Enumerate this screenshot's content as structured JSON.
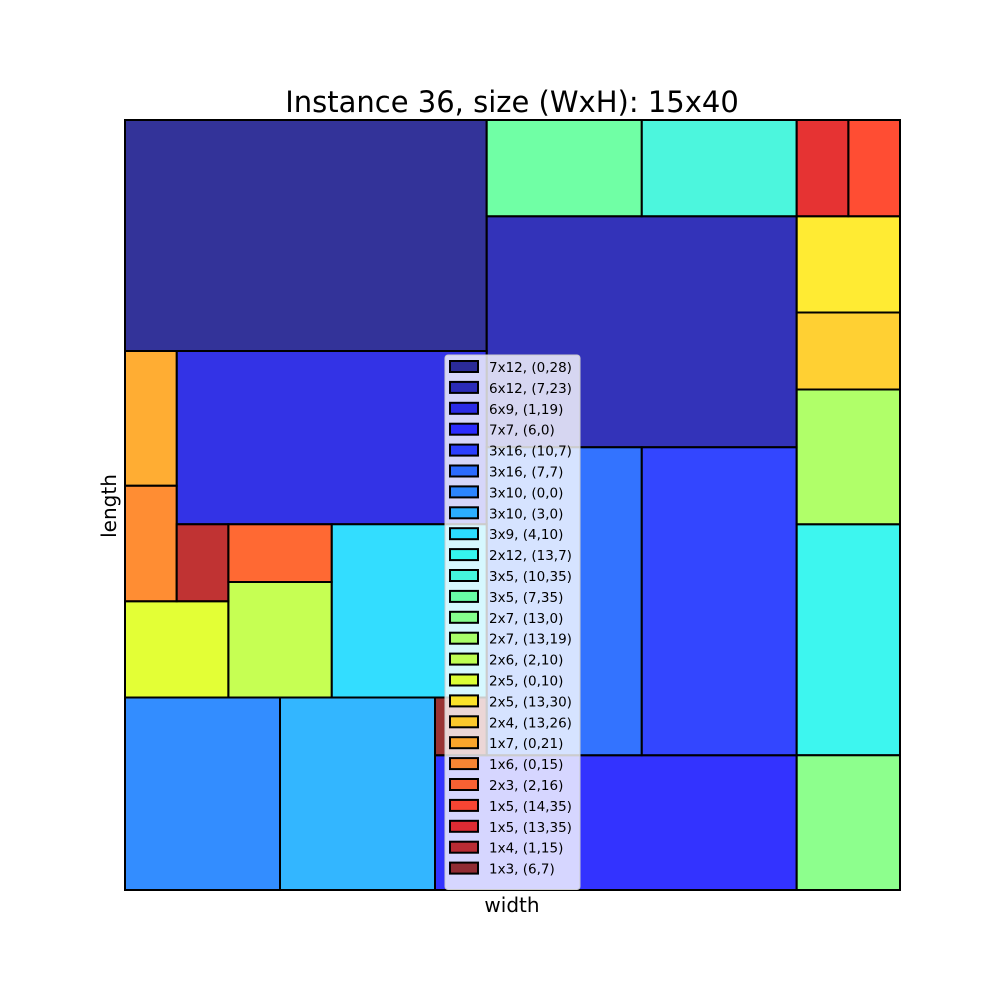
{
  "chart_data": {
    "type": "rectangle-packing",
    "title": "Instance 36, size (WxH): 15x40",
    "xlabel": "width",
    "ylabel": "length",
    "xlim": [
      0,
      15
    ],
    "ylim": [
      0,
      40
    ],
    "grid": false,
    "legend_position": "center",
    "rectangles": [
      {
        "label": "7x12, (0,28)",
        "x": 0,
        "y": 28,
        "w": 7,
        "h": 12,
        "color": "#000080"
      },
      {
        "label": "6x12, (7,23)",
        "x": 7,
        "y": 23,
        "w": 6,
        "h": 12,
        "color": "#0000a8"
      },
      {
        "label": "6x9, (1,19)",
        "x": 1,
        "y": 19,
        "w": 6,
        "h": 9,
        "color": "#0000e0"
      },
      {
        "label": "7x7, (6,0)",
        "x": 6,
        "y": 0,
        "w": 7,
        "h": 7,
        "color": "#0000ff"
      },
      {
        "label": "3x16, (10,7)",
        "x": 10,
        "y": 7,
        "w": 3,
        "h": 16,
        "color": "#0018ff"
      },
      {
        "label": "3x16, (7,7)",
        "x": 7,
        "y": 7,
        "w": 3,
        "h": 16,
        "color": "#0050ff"
      },
      {
        "label": "3x10, (0,0)",
        "x": 0,
        "y": 0,
        "w": 3,
        "h": 10,
        "color": "#0070ff"
      },
      {
        "label": "3x10, (3,0)",
        "x": 3,
        "y": 0,
        "w": 3,
        "h": 10,
        "color": "#00a4ff"
      },
      {
        "label": "3x9, (4,10)",
        "x": 4,
        "y": 10,
        "w": 3,
        "h": 9,
        "color": "#00d4ff"
      },
      {
        "label": "2x12, (13,7)",
        "x": 13,
        "y": 7,
        "w": 2,
        "h": 12,
        "color": "#0cf4eb"
      },
      {
        "label": "3x5, (10,35)",
        "x": 10,
        "y": 35,
        "w": 3,
        "h": 5,
        "color": "#1ff4d4"
      },
      {
        "label": "3x5, (7,35)",
        "x": 7,
        "y": 35,
        "w": 3,
        "h": 5,
        "color": "#4cff8e"
      },
      {
        "label": "2x7, (13,0)",
        "x": 13,
        "y": 0,
        "w": 2,
        "h": 7,
        "color": "#70ff70"
      },
      {
        "label": "2x7, (13,19)",
        "x": 13,
        "y": 19,
        "w": 2,
        "h": 7,
        "color": "#9cff44"
      },
      {
        "label": "2x6, (2,10)",
        "x": 2,
        "y": 10,
        "w": 2,
        "h": 6,
        "color": "#b8ff28"
      },
      {
        "label": "2x5, (0,10)",
        "x": 0,
        "y": 10,
        "w": 2,
        "h": 5,
        "color": "#dcff04"
      },
      {
        "label": "2x5, (13,30)",
        "x": 13,
        "y": 30,
        "w": 2,
        "h": 5,
        "color": "#ffe600"
      },
      {
        "label": "2x4, (13,26)",
        "x": 13,
        "y": 26,
        "w": 2,
        "h": 4,
        "color": "#ffc400"
      },
      {
        "label": "1x7, (0,21)",
        "x": 0,
        "y": 21,
        "w": 1,
        "h": 7,
        "color": "#ff9800"
      },
      {
        "label": "1x6, (0,15)",
        "x": 0,
        "y": 15,
        "w": 1,
        "h": 6,
        "color": "#ff7000"
      },
      {
        "label": "2x3, (2,16)",
        "x": 2,
        "y": 16,
        "w": 2,
        "h": 3,
        "color": "#ff4400"
      },
      {
        "label": "1x5, (14,35)",
        "x": 14,
        "y": 35,
        "w": 1,
        "h": 5,
        "color": "#ff2000"
      },
      {
        "label": "1x5, (13,35)",
        "x": 13,
        "y": 35,
        "w": 1,
        "h": 5,
        "color": "#e00000"
      },
      {
        "label": "1x4, (1,15)",
        "x": 1,
        "y": 15,
        "w": 1,
        "h": 4,
        "color": "#b00000"
      },
      {
        "label": "1x3, (6,7)",
        "x": 6,
        "y": 7,
        "w": 1,
        "h": 3,
        "color": "#800000"
      }
    ]
  }
}
